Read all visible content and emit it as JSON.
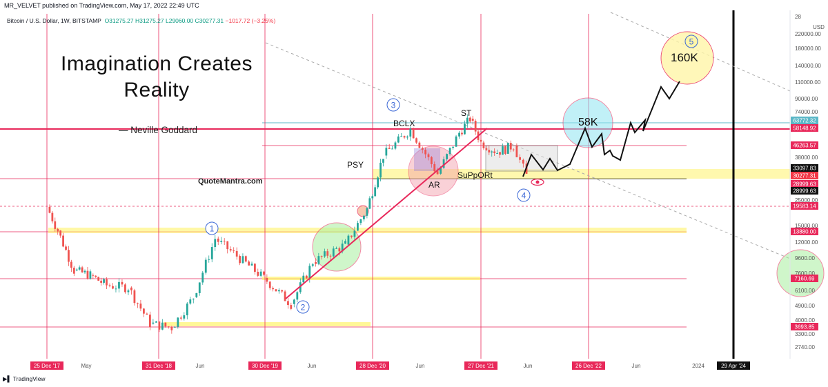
{
  "header": {
    "published": "MR_VELVET published on TradingView.com, May 17, 2022 22:49 UTC"
  },
  "symbol": {
    "name": "Bitcoin / U.S. Dollar, 1W, BITSTAMP",
    "o": "O31275.27",
    "h": "H31275.27",
    "l": "L29060.00",
    "c": "C30277.31",
    "chg": "−1017.72 (−3.25%)"
  },
  "quote": {
    "line1": "Imagination Creates",
    "line2": "Reality",
    "author": "— Neville Goddard",
    "site": "QuoteMantra.com"
  },
  "footer": {
    "brand": "TradingView"
  },
  "chart_data": {
    "type": "line",
    "title": "Bitcoin / U.S. Dollar, 1W, BITSTAMP",
    "y_scale": "log",
    "currency": "USD",
    "y_ticks": [
      "28",
      "220000.00",
      "180000.00",
      "140000.00",
      "110000.00",
      "90000.00",
      "74000.00",
      "61000.00",
      "50000.00",
      "38000.00",
      "31000.00",
      "25000.00",
      "15000.00",
      "12000.00",
      "9600.00",
      "7600.00",
      "6100.00",
      "4900.00",
      "4000.00",
      "3300.00",
      "2740.00"
    ],
    "x_ticks": [
      "25 Dec '17",
      "May",
      "31 Dec '18",
      "Jun",
      "30 Dec '19",
      "Jun",
      "28 Dec '20",
      "Jun",
      "27 Dec '21",
      "Jun",
      "26 Dec '22",
      "Jun",
      "2024",
      "29 Apr '24"
    ],
    "price_labels": [
      {
        "value": "63772.32",
        "color": "#5bb7c7"
      },
      {
        "value": "58148.92",
        "color": "#e8285a"
      },
      {
        "value": "46263.57",
        "color": "#e8285a"
      },
      {
        "value": "33097.83",
        "color": "#111111"
      },
      {
        "value": "30277.31",
        "color": "#f23645"
      },
      {
        "value": "28999.63",
        "color": "#e8285a"
      },
      {
        "value": "28999.63",
        "color": "#111111"
      },
      {
        "value": "19583.14",
        "color": "#e8285a"
      },
      {
        "value": "13880.00",
        "color": "#e8285a"
      },
      {
        "value": "7160.69",
        "color": "#e8285a"
      },
      {
        "value": "3693.85",
        "color": "#e8285a"
      }
    ],
    "annotations": {
      "wave_labels": [
        "1",
        "2",
        "3",
        "4",
        "5"
      ],
      "BCLX": "BCLX",
      "ST": "ST",
      "PSY": "PSY",
      "AR": "AR",
      "support": "SuPpORt",
      "target_58k": "58K",
      "target_160k": "160K"
    },
    "series": [
      {
        "name": "",
        "values": [
          [
            2017.95,
            19500
          ],
          [
            2018.05,
            14000
          ],
          [
            2018.2,
            8000
          ],
          [
            2018.35,
            7500
          ],
          [
            2018.5,
            6500
          ],
          [
            2018.7,
            6300
          ],
          [
            2018.9,
            3800
          ],
          [
            2019.1,
            3600
          ],
          [
            2019.3,
            5500
          ],
          [
            2019.5,
            12500
          ],
          [
            2019.7,
            9800
          ],
          [
            2019.95,
            7200
          ],
          [
            2020.2,
            5000
          ],
          [
            2020.4,
            9000
          ],
          [
            2020.7,
            11500
          ],
          [
            2020.9,
            19000
          ],
          [
            2021.05,
            40000
          ],
          [
            2021.3,
            58000
          ],
          [
            2021.55,
            31000
          ],
          [
            2021.75,
            55000
          ],
          [
            2021.85,
            67000
          ],
          [
            2021.95,
            48000
          ],
          [
            2022.1,
            42000
          ],
          [
            2022.25,
            46000
          ],
          [
            2022.37,
            30277
          ]
        ]
      },
      {
        "name": "",
        "values": [
          [
            2022.37,
            30277
          ],
          [
            2022.45,
            38000
          ],
          [
            2022.55,
            32000
          ],
          [
            2022.7,
            33000
          ],
          [
            2022.9,
            58000
          ],
          [
            2023.0,
            44000
          ],
          [
            2023.2,
            40000
          ],
          [
            2023.35,
            58000
          ],
          [
            2023.5,
            78000
          ],
          [
            2023.65,
            105000
          ],
          [
            2023.8,
            160000
          ]
        ]
      }
    ]
  }
}
